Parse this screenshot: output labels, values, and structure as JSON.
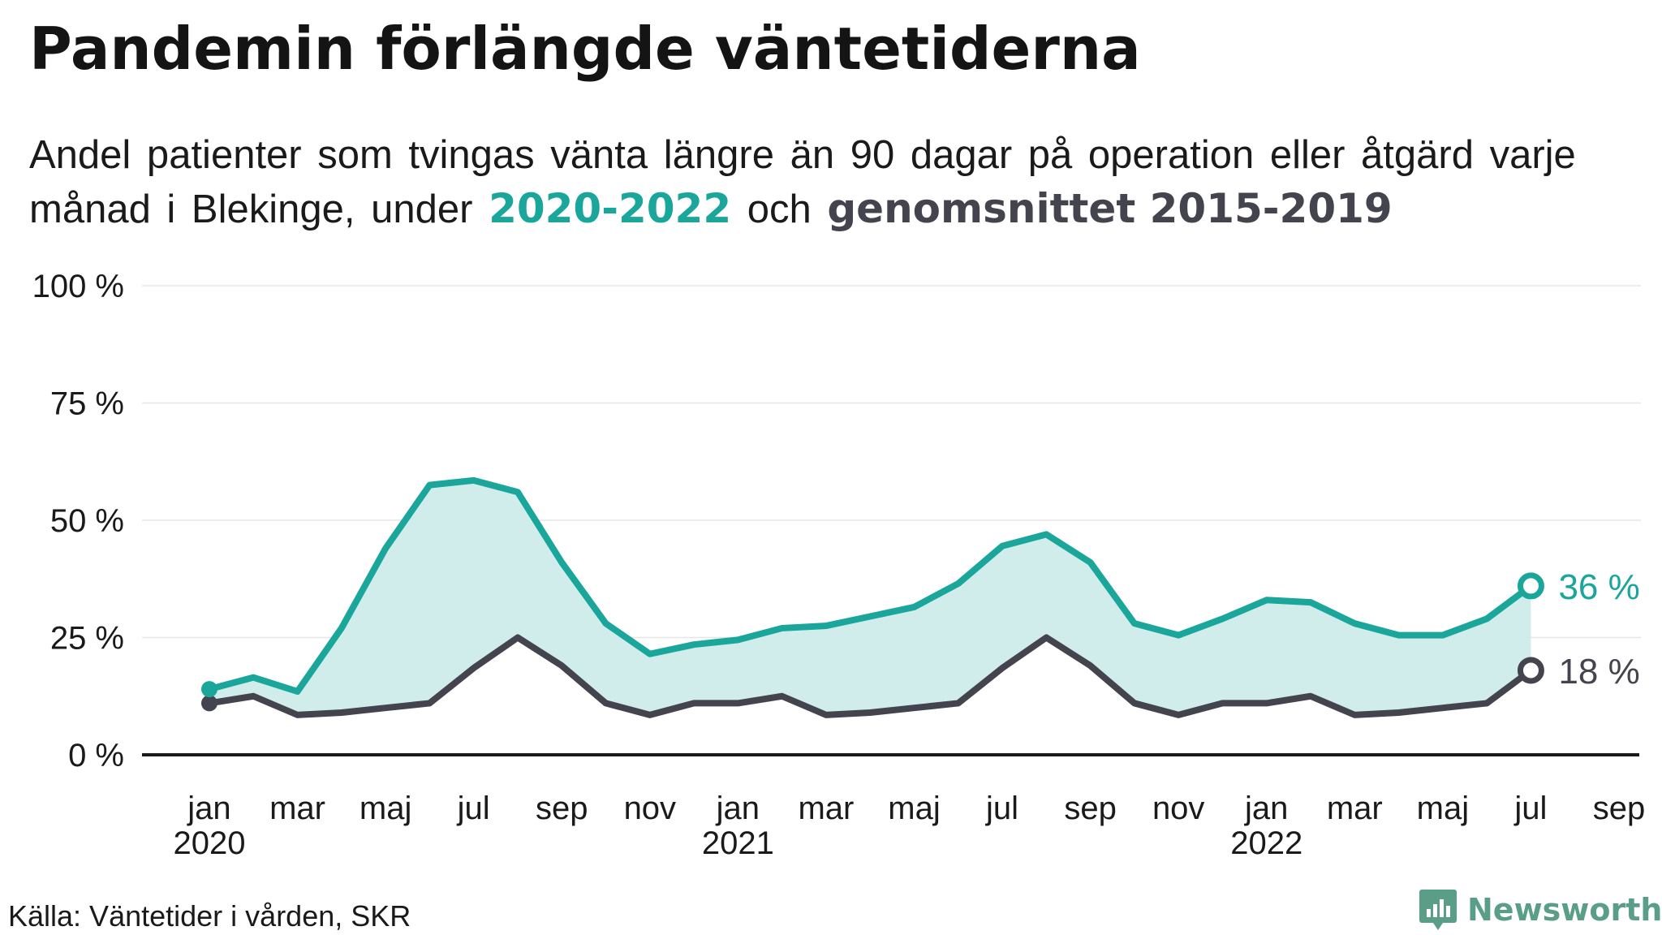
{
  "title": "Pandemin förlängde väntetiderna",
  "subtitle": {
    "part1": "Andel patienter  som tvingas  vänta längre  än 90 dagar på operation  eller åtgärd varje månad  i Blekinge,  under ",
    "highlight1": "2020-2022",
    "part2": " och ",
    "highlight2": "genomsnittet 2015-2019"
  },
  "source": "Källa: Väntetider i vården, SKR",
  "logo_text": "Newsworthy",
  "logo_icon": "bar-chart-speech-bubble-icon",
  "colors": {
    "series_current": "#1aa69a",
    "series_average": "#44444f",
    "area_fill": "#cdeceb",
    "logo": "#5b9e87"
  },
  "chart_data": {
    "type": "line",
    "ylim": [
      0,
      100
    ],
    "yticks": [
      {
        "value": 0,
        "label": "0 %"
      },
      {
        "value": 25,
        "label": "25 %"
      },
      {
        "value": 50,
        "label": "50 %"
      },
      {
        "value": 75,
        "label": "75 %"
      },
      {
        "value": 100,
        "label": "100 %"
      }
    ],
    "x_start": "2020-01",
    "x_end": "2022-09",
    "xticks": [
      {
        "month": "2020-01",
        "label": "jan",
        "year": "2020"
      },
      {
        "month": "2020-03",
        "label": "mar"
      },
      {
        "month": "2020-05",
        "label": "maj"
      },
      {
        "month": "2020-07",
        "label": "jul"
      },
      {
        "month": "2020-09",
        "label": "sep"
      },
      {
        "month": "2020-11",
        "label": "nov"
      },
      {
        "month": "2021-01",
        "label": "jan",
        "year": "2021"
      },
      {
        "month": "2021-03",
        "label": "mar"
      },
      {
        "month": "2021-05",
        "label": "maj"
      },
      {
        "month": "2021-07",
        "label": "jul"
      },
      {
        "month": "2021-09",
        "label": "sep"
      },
      {
        "month": "2021-11",
        "label": "nov"
      },
      {
        "month": "2022-01",
        "label": "jan",
        "year": "2022"
      },
      {
        "month": "2022-03",
        "label": "mar"
      },
      {
        "month": "2022-05",
        "label": "maj"
      },
      {
        "month": "2022-07",
        "label": "jul"
      },
      {
        "month": "2022-09",
        "label": "sep"
      }
    ],
    "x": [
      "2020-01",
      "2020-02",
      "2020-03",
      "2020-04",
      "2020-05",
      "2020-06",
      "2020-07",
      "2020-08",
      "2020-09",
      "2020-10",
      "2020-11",
      "2020-12",
      "2021-01",
      "2021-02",
      "2021-03",
      "2021-04",
      "2021-05",
      "2021-06",
      "2021-07",
      "2021-08",
      "2021-09",
      "2021-10",
      "2021-11",
      "2021-12",
      "2022-01",
      "2022-02",
      "2022-03",
      "2022-04",
      "2022-05",
      "2022-06",
      "2022-07"
    ],
    "series": [
      {
        "name": "2020-2022",
        "color": "#1aa69a",
        "end_label": "36 %",
        "values": [
          14,
          16.5,
          13.5,
          27,
          44,
          57.5,
          58.5,
          56,
          41,
          28,
          21.5,
          23.5,
          24.5,
          27,
          27.5,
          29.5,
          31.5,
          36.5,
          44.5,
          47,
          41,
          28,
          25.5,
          29,
          33,
          32.5,
          28,
          25.5,
          25.5,
          29,
          36
        ]
      },
      {
        "name": "genomsnittet 2015-2019",
        "color": "#44444f",
        "end_label": "18 %",
        "values": [
          11,
          12.5,
          8.5,
          9,
          10,
          11,
          18.5,
          25,
          19,
          11,
          8.5,
          11,
          11,
          12.5,
          8.5,
          9,
          10,
          11,
          18.5,
          25,
          19,
          11,
          8.5,
          11,
          11,
          12.5,
          8.5,
          9,
          10,
          11,
          18
        ]
      }
    ]
  }
}
